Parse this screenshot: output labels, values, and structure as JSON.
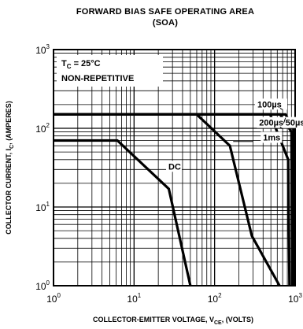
{
  "chart_data": {
    "type": "line",
    "title": "FORWARD BIAS SAFE OPERATING AREA",
    "subtitle": "(SOA)",
    "xlabel": {
      "main": "COLLECTOR-EMITTER VOLTAGE, V",
      "sub": "CE",
      "tail": ", (VOLTS)"
    },
    "ylabel": {
      "main": "COLLECTOR CURRENT, I",
      "sub": "C",
      "tail": ", (AMPERES)"
    },
    "x_scale": "log",
    "y_scale": "log",
    "xlim": [
      1,
      1000
    ],
    "ylim": [
      1,
      1000
    ],
    "grid": true,
    "x_ticks": [
      {
        "value": 1,
        "base": "10",
        "exp": "0"
      },
      {
        "value": 10,
        "base": "10",
        "exp": "1"
      },
      {
        "value": 100,
        "base": "10",
        "exp": "2"
      },
      {
        "value": 1000,
        "base": "10",
        "exp": "3"
      }
    ],
    "y_ticks": [
      {
        "value": 1,
        "base": "10",
        "exp": "0"
      },
      {
        "value": 10,
        "base": "10",
        "exp": "1"
      },
      {
        "value": 100,
        "base": "10",
        "exp": "2"
      },
      {
        "value": 1000,
        "base": "10",
        "exp": "3"
      }
    ],
    "annotations": {
      "tc_main": "T",
      "tc_sub": "C",
      "tc_value": " = 25°C",
      "mode": "NON-REPETITIVE"
    },
    "series": [
      {
        "name": "DC",
        "points": [
          [
            1,
            70
          ],
          [
            6.2,
            70
          ],
          [
            27,
            17
          ],
          [
            50,
            1
          ]
        ]
      },
      {
        "name": "1ms",
        "points": [
          [
            1,
            150
          ],
          [
            60,
            150
          ],
          [
            155,
            60
          ],
          [
            290,
            4.3
          ],
          [
            640,
            1
          ]
        ]
      },
      {
        "name": "200µs",
        "points": [
          [
            1,
            150
          ],
          [
            490,
            150
          ],
          [
            820,
            40
          ],
          [
            850,
            1
          ]
        ]
      },
      {
        "name": "100µs",
        "points": [
          [
            1,
            150
          ],
          [
            650,
            150
          ],
          [
            900,
            90
          ],
          [
            920,
            1
          ]
        ]
      },
      {
        "name": "50µs",
        "points": [
          [
            1,
            150
          ],
          [
            760,
            150
          ],
          [
            950,
            100
          ],
          [
            960,
            1
          ]
        ]
      }
    ]
  }
}
